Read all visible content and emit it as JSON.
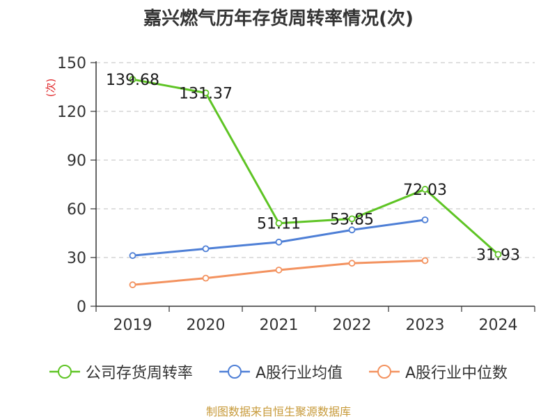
{
  "chart_data": {
    "type": "line",
    "title": "嘉兴燃气历年存货周转率情况(次)",
    "ylabel": "(次)",
    "xlabel": "",
    "categories": [
      "2019",
      "2020",
      "2021",
      "2022",
      "2023",
      "2024"
    ],
    "yticks": [
      0,
      30,
      60,
      90,
      120,
      150
    ],
    "ylim": [
      0,
      150
    ],
    "grid": true,
    "legend_position": "bottom",
    "series": [
      {
        "name": "公司存货周转率",
        "color": "#5ec424",
        "values": [
          139.68,
          131.37,
          51.11,
          53.85,
          72.03,
          31.93
        ],
        "labels": [
          "139.68",
          "131.37",
          "51.11",
          "53.85",
          "72.03",
          "31.93"
        ]
      },
      {
        "name": "A股行业均值",
        "color": "#4e7fd6",
        "values": [
          31.2,
          35.4,
          39.5,
          47.0,
          53.2,
          null
        ]
      },
      {
        "name": "A股行业中位数",
        "color": "#f3925f",
        "values": [
          13.2,
          17.3,
          22.3,
          26.5,
          28.1,
          null
        ]
      }
    ]
  },
  "footer": {
    "source": "制图数据来自恒生聚源数据库"
  }
}
